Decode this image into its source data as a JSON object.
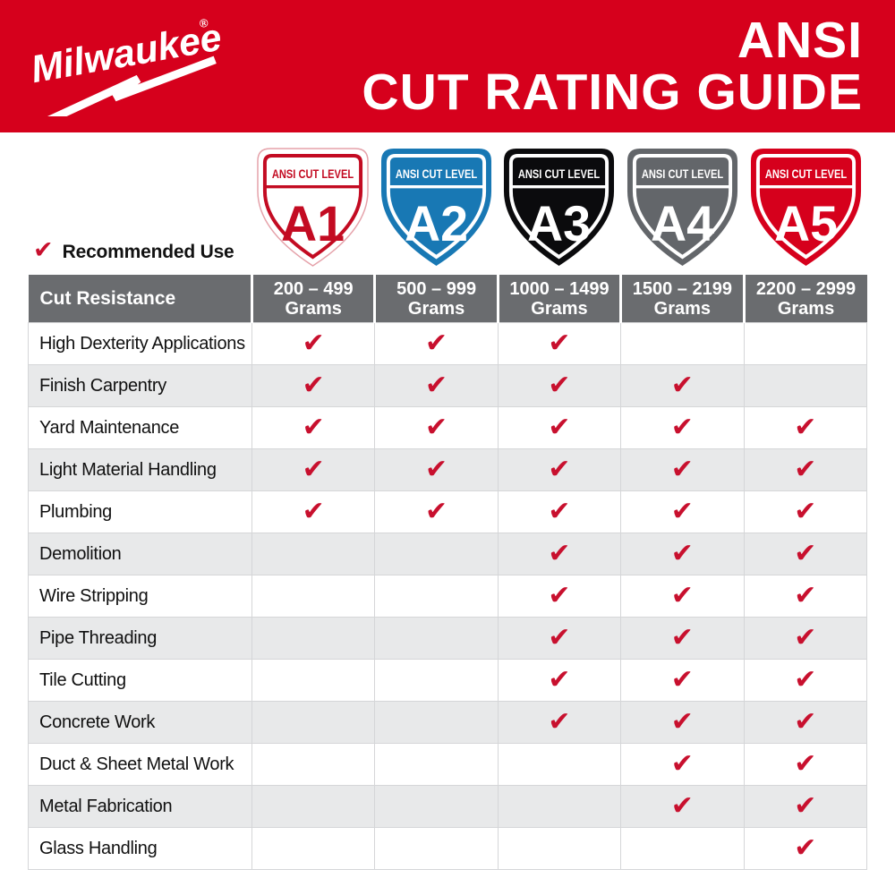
{
  "header": {
    "brand": "Milwaukee",
    "registered": "®",
    "title_line1": "ANSI",
    "title_line2": "CUT RATING GUIDE"
  },
  "legend": {
    "label": "Recommended Use"
  },
  "check_glyph": "✔",
  "shields": [
    {
      "level": "A1",
      "band_label": "ANSI CUT LEVEL",
      "bg": "#FFFFFF",
      "ink": "#C30B22",
      "outer_stroke": "#E5A2AA"
    },
    {
      "level": "A2",
      "band_label": "ANSI CUT LEVEL",
      "bg": "#1878B4",
      "ink": "#FFFFFF",
      "outer_stroke": null
    },
    {
      "level": "A3",
      "band_label": "ANSI CUT LEVEL",
      "bg": "#0B0B0D",
      "ink": "#FFFFFF",
      "outer_stroke": null
    },
    {
      "level": "A4",
      "band_label": "ANSI CUT LEVEL",
      "bg": "#63666A",
      "ink": "#FFFFFF",
      "outer_stroke": null
    },
    {
      "level": "A5",
      "band_label": "ANSI CUT LEVEL",
      "bg": "#D6001C",
      "ink": "#FFFFFF",
      "outer_stroke": null
    }
  ],
  "table": {
    "header": {
      "col0": "Cut Resistance",
      "columns": [
        {
          "line1": "200 – 499",
          "line2": "Grams"
        },
        {
          "line1": "500 – 999",
          "line2": "Grams"
        },
        {
          "line1": "1000 – 1499",
          "line2": "Grams"
        },
        {
          "line1": "1500 – 2199",
          "line2": "Grams"
        },
        {
          "line1": "2200 – 2999",
          "line2": "Grams"
        }
      ]
    },
    "rows": [
      {
        "label": "High Dexterity Applications",
        "checks": [
          true,
          true,
          true,
          false,
          false
        ]
      },
      {
        "label": "Finish Carpentry",
        "checks": [
          true,
          true,
          true,
          true,
          false
        ]
      },
      {
        "label": "Yard Maintenance",
        "checks": [
          true,
          true,
          true,
          true,
          true
        ]
      },
      {
        "label": "Light Material Handling",
        "checks": [
          true,
          true,
          true,
          true,
          true
        ]
      },
      {
        "label": "Plumbing",
        "checks": [
          true,
          true,
          true,
          true,
          true
        ]
      },
      {
        "label": "Demolition",
        "checks": [
          false,
          false,
          true,
          true,
          true
        ]
      },
      {
        "label": "Wire Stripping",
        "checks": [
          false,
          false,
          true,
          true,
          true
        ]
      },
      {
        "label": "Pipe Threading",
        "checks": [
          false,
          false,
          true,
          true,
          true
        ]
      },
      {
        "label": "Tile Cutting",
        "checks": [
          false,
          false,
          true,
          true,
          true
        ]
      },
      {
        "label": "Concrete Work",
        "checks": [
          false,
          false,
          true,
          true,
          true
        ]
      },
      {
        "label": "Duct & Sheet Metal Work",
        "checks": [
          false,
          false,
          false,
          true,
          true
        ]
      },
      {
        "label": "Metal Fabrication",
        "checks": [
          false,
          false,
          false,
          true,
          true
        ]
      },
      {
        "label": "Glass Handling",
        "checks": [
          false,
          false,
          false,
          false,
          true
        ]
      }
    ]
  },
  "colors": {
    "brand_red": "#D6001C",
    "check_red": "#C8102E",
    "table_header_gray": "#6A6C6F",
    "row_alt_gray": "#E8E9EA",
    "gridline": "#D5D6D8"
  }
}
